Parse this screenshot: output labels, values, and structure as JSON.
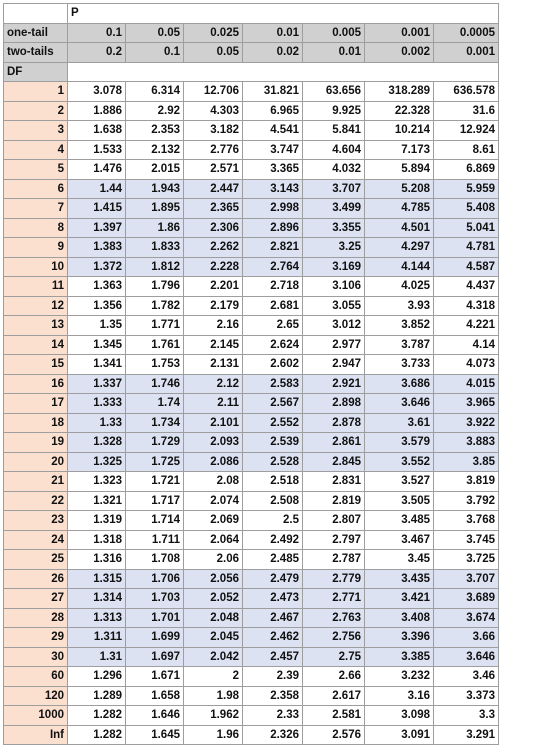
{
  "p_label": "P",
  "df_label": "DF",
  "one_tail": {
    "label": "one-tail",
    "values": [
      "0.1",
      "0.05",
      "0.025",
      "0.01",
      "0.005",
      "0.001",
      "0.0005"
    ]
  },
  "two_tails": {
    "label": "two-tails",
    "values": [
      "0.2",
      "0.1",
      "0.05",
      "0.02",
      "0.01",
      "0.002",
      "0.001"
    ]
  },
  "colors": {
    "header_gray": "#d0d0d0",
    "df_peach": "#fbe0d0",
    "band_blue": "#dde2f2"
  },
  "rows": [
    {
      "df": "1",
      "values": [
        "3.078",
        "6.314",
        "12.706",
        "31.821",
        "63.656",
        "318.289",
        "636.578"
      ],
      "band": false
    },
    {
      "df": "2",
      "values": [
        "1.886",
        "2.92",
        "4.303",
        "6.965",
        "9.925",
        "22.328",
        "31.6"
      ],
      "band": false
    },
    {
      "df": "3",
      "values": [
        "1.638",
        "2.353",
        "3.182",
        "4.541",
        "5.841",
        "10.214",
        "12.924"
      ],
      "band": false
    },
    {
      "df": "4",
      "values": [
        "1.533",
        "2.132",
        "2.776",
        "3.747",
        "4.604",
        "7.173",
        "8.61"
      ],
      "band": false
    },
    {
      "df": "5",
      "values": [
        "1.476",
        "2.015",
        "2.571",
        "3.365",
        "4.032",
        "5.894",
        "6.869"
      ],
      "band": false
    },
    {
      "df": "6",
      "values": [
        "1.44",
        "1.943",
        "2.447",
        "3.143",
        "3.707",
        "5.208",
        "5.959"
      ],
      "band": true
    },
    {
      "df": "7",
      "values": [
        "1.415",
        "1.895",
        "2.365",
        "2.998",
        "3.499",
        "4.785",
        "5.408"
      ],
      "band": true
    },
    {
      "df": "8",
      "values": [
        "1.397",
        "1.86",
        "2.306",
        "2.896",
        "3.355",
        "4.501",
        "5.041"
      ],
      "band": true
    },
    {
      "df": "9",
      "values": [
        "1.383",
        "1.833",
        "2.262",
        "2.821",
        "3.25",
        "4.297",
        "4.781"
      ],
      "band": true
    },
    {
      "df": "10",
      "values": [
        "1.372",
        "1.812",
        "2.228",
        "2.764",
        "3.169",
        "4.144",
        "4.587"
      ],
      "band": true
    },
    {
      "df": "11",
      "values": [
        "1.363",
        "1.796",
        "2.201",
        "2.718",
        "3.106",
        "4.025",
        "4.437"
      ],
      "band": false
    },
    {
      "df": "12",
      "values": [
        "1.356",
        "1.782",
        "2.179",
        "2.681",
        "3.055",
        "3.93",
        "4.318"
      ],
      "band": false
    },
    {
      "df": "13",
      "values": [
        "1.35",
        "1.771",
        "2.16",
        "2.65",
        "3.012",
        "3.852",
        "4.221"
      ],
      "band": false
    },
    {
      "df": "14",
      "values": [
        "1.345",
        "1.761",
        "2.145",
        "2.624",
        "2.977",
        "3.787",
        "4.14"
      ],
      "band": false
    },
    {
      "df": "15",
      "values": [
        "1.341",
        "1.753",
        "2.131",
        "2.602",
        "2.947",
        "3.733",
        "4.073"
      ],
      "band": false
    },
    {
      "df": "16",
      "values": [
        "1.337",
        "1.746",
        "2.12",
        "2.583",
        "2.921",
        "3.686",
        "4.015"
      ],
      "band": true
    },
    {
      "df": "17",
      "values": [
        "1.333",
        "1.74",
        "2.11",
        "2.567",
        "2.898",
        "3.646",
        "3.965"
      ],
      "band": true
    },
    {
      "df": "18",
      "values": [
        "1.33",
        "1.734",
        "2.101",
        "2.552",
        "2.878",
        "3.61",
        "3.922"
      ],
      "band": true
    },
    {
      "df": "19",
      "values": [
        "1.328",
        "1.729",
        "2.093",
        "2.539",
        "2.861",
        "3.579",
        "3.883"
      ],
      "band": true
    },
    {
      "df": "20",
      "values": [
        "1.325",
        "1.725",
        "2.086",
        "2.528",
        "2.845",
        "3.552",
        "3.85"
      ],
      "band": true
    },
    {
      "df": "21",
      "values": [
        "1.323",
        "1.721",
        "2.08",
        "2.518",
        "2.831",
        "3.527",
        "3.819"
      ],
      "band": false
    },
    {
      "df": "22",
      "values": [
        "1.321",
        "1.717",
        "2.074",
        "2.508",
        "2.819",
        "3.505",
        "3.792"
      ],
      "band": false
    },
    {
      "df": "23",
      "values": [
        "1.319",
        "1.714",
        "2.069",
        "2.5",
        "2.807",
        "3.485",
        "3.768"
      ],
      "band": false
    },
    {
      "df": "24",
      "values": [
        "1.318",
        "1.711",
        "2.064",
        "2.492",
        "2.797",
        "3.467",
        "3.745"
      ],
      "band": false
    },
    {
      "df": "25",
      "values": [
        "1.316",
        "1.708",
        "2.06",
        "2.485",
        "2.787",
        "3.45",
        "3.725"
      ],
      "band": false
    },
    {
      "df": "26",
      "values": [
        "1.315",
        "1.706",
        "2.056",
        "2.479",
        "2.779",
        "3.435",
        "3.707"
      ],
      "band": true
    },
    {
      "df": "27",
      "values": [
        "1.314",
        "1.703",
        "2.052",
        "2.473",
        "2.771",
        "3.421",
        "3.689"
      ],
      "band": true
    },
    {
      "df": "28",
      "values": [
        "1.313",
        "1.701",
        "2.048",
        "2.467",
        "2.763",
        "3.408",
        "3.674"
      ],
      "band": true
    },
    {
      "df": "29",
      "values": [
        "1.311",
        "1.699",
        "2.045",
        "2.462",
        "2.756",
        "3.396",
        "3.66"
      ],
      "band": true
    },
    {
      "df": "30",
      "values": [
        "1.31",
        "1.697",
        "2.042",
        "2.457",
        "2.75",
        "3.385",
        "3.646"
      ],
      "band": true
    },
    {
      "df": "60",
      "values": [
        "1.296",
        "1.671",
        "2",
        "2.39",
        "2.66",
        "3.232",
        "3.46"
      ],
      "band": false
    },
    {
      "df": "120",
      "values": [
        "1.289",
        "1.658",
        "1.98",
        "2.358",
        "2.617",
        "3.16",
        "3.373"
      ],
      "band": false
    },
    {
      "df": "1000",
      "values": [
        "1.282",
        "1.646",
        "1.962",
        "2.33",
        "2.581",
        "3.098",
        "3.3"
      ],
      "band": false
    },
    {
      "df": "Inf",
      "values": [
        "1.282",
        "1.645",
        "1.96",
        "2.326",
        "2.576",
        "3.091",
        "3.291"
      ],
      "band": false
    }
  ]
}
